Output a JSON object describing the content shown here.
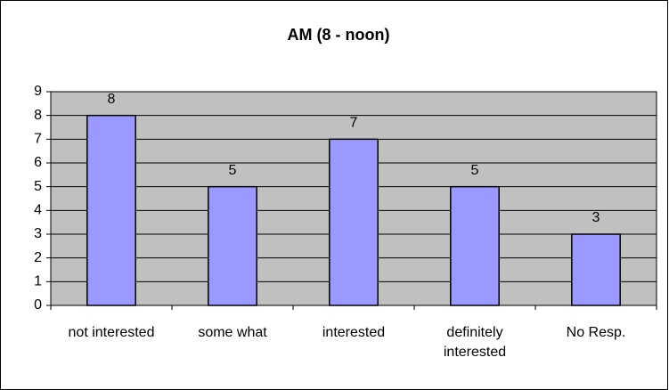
{
  "chart_data": {
    "type": "bar",
    "title": "AM (8 - noon)",
    "categories": [
      "not interested",
      "some what",
      "interested",
      "definitely interested",
      "No Resp."
    ],
    "values": [
      8,
      5,
      7,
      5,
      3
    ],
    "color": "#9999ff",
    "plot_background": "#c0c0c0",
    "ylim": [
      0,
      9
    ],
    "yticks": [
      0,
      1,
      2,
      3,
      4,
      5,
      6,
      7,
      8,
      9
    ],
    "grid": true
  }
}
